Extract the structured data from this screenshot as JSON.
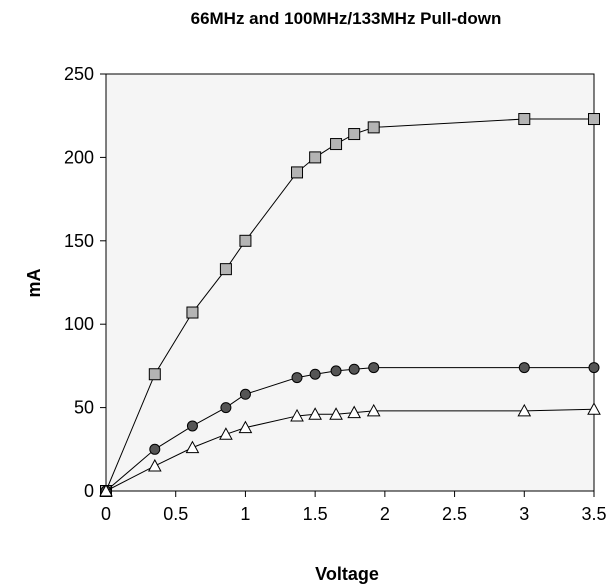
{
  "chart_data": {
    "type": "line",
    "title": "66MHz and 100MHz/133MHz Pull-down",
    "xlabel": "Voltage",
    "ylabel": "mA",
    "xlim": [
      0,
      3.5
    ],
    "ylim": [
      0,
      250
    ],
    "x_ticks": [
      "0",
      "0.5",
      "1",
      "1.5",
      "2",
      "2.5",
      "3",
      "3.5"
    ],
    "y_ticks": [
      "0",
      "50",
      "100",
      "150",
      "200",
      "250"
    ],
    "grid": false,
    "legend": "none",
    "plot_background": "#f5f5f5",
    "series": [
      {
        "marker": "square",
        "color": "#000000",
        "fill": "#b4b4b4",
        "x": [
          0,
          0.35,
          0.62,
          0.86,
          1.0,
          1.37,
          1.5,
          1.65,
          1.78,
          1.92,
          3.0,
          3.5
        ],
        "y": [
          0,
          70,
          107,
          133,
          150,
          191,
          200,
          208,
          214,
          218,
          223,
          223
        ]
      },
      {
        "marker": "circle",
        "color": "#000000",
        "fill": "#555555",
        "x": [
          0,
          0.35,
          0.62,
          0.86,
          1.0,
          1.37,
          1.5,
          1.65,
          1.78,
          1.92,
          3.0,
          3.5
        ],
        "y": [
          0,
          25,
          39,
          50,
          58,
          68,
          70,
          72,
          73,
          74,
          74,
          74
        ]
      },
      {
        "marker": "triangle",
        "color": "#000000",
        "fill": "#ffffff",
        "x": [
          0,
          0.35,
          0.62,
          0.86,
          1.0,
          1.37,
          1.5,
          1.65,
          1.78,
          1.92,
          3.0,
          3.5
        ],
        "y": [
          0,
          15,
          26,
          34,
          38,
          45,
          46,
          46,
          47,
          48,
          48,
          49
        ]
      }
    ]
  }
}
